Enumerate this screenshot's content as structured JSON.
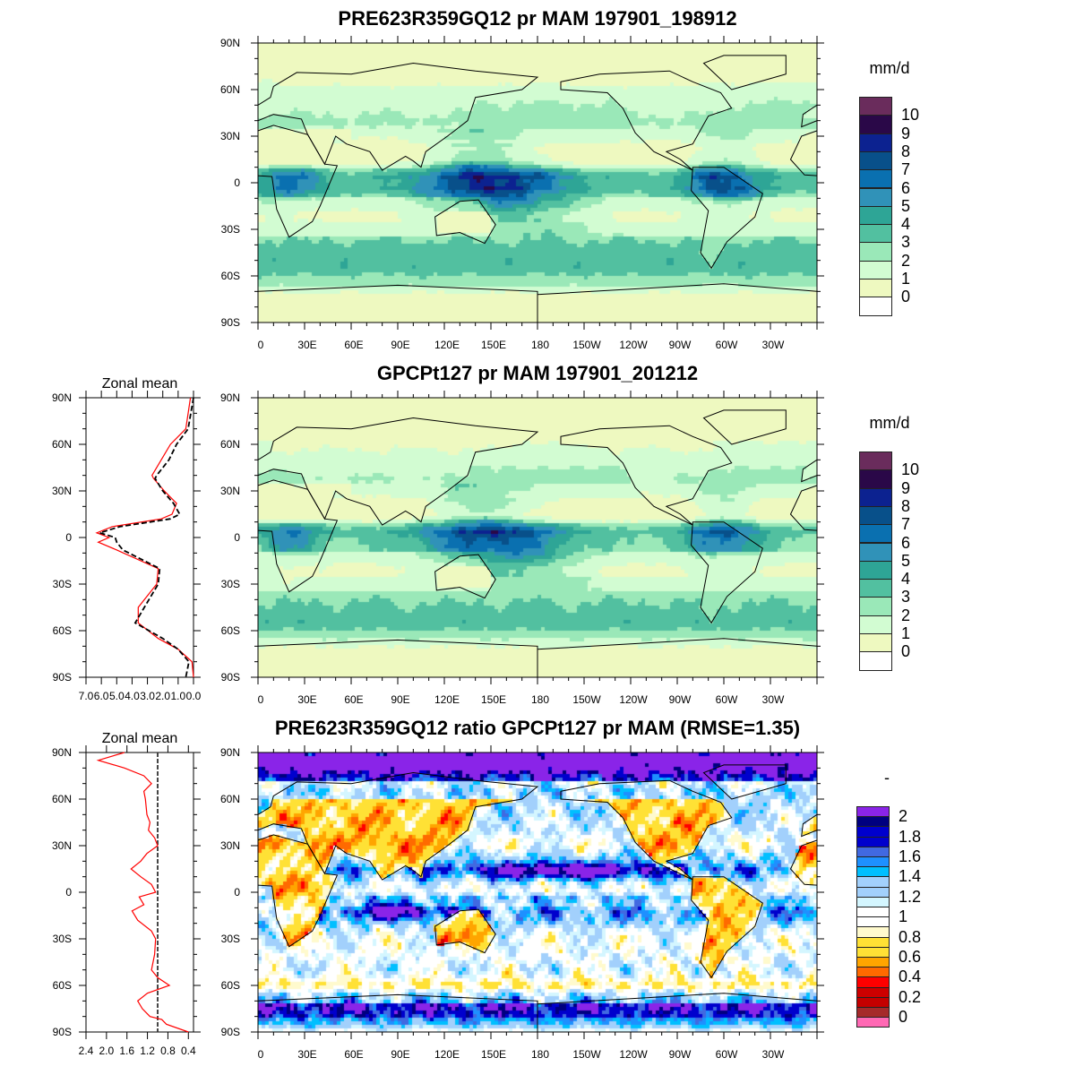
{
  "panels": [
    {
      "title": "PRE623R359GQ12 pr MAM 197901_198912",
      "colorbar": {
        "unit": "mm/d",
        "labels": [
          "10",
          "9",
          "8",
          "7",
          "6",
          "5",
          "4",
          "3",
          "2",
          "1",
          "0"
        ],
        "colors": [
          "#6a2c5c",
          "#2a0848",
          "#0c2290",
          "#08508a",
          "#0a70b0",
          "#3092b8",
          "#2ea596",
          "#52c0a0",
          "#9ae8b8",
          "#d2fcd2",
          "#eef9c0",
          "#ffffff"
        ]
      }
    },
    {
      "title": "GPCPt127 pr MAM 197901_201212",
      "colorbar": {
        "unit": "mm/d",
        "labels": [
          "10",
          "9",
          "8",
          "7",
          "6",
          "5",
          "4",
          "3",
          "2",
          "1",
          "0"
        ],
        "colors": [
          "#6a2c5c",
          "#2a0848",
          "#0c2290",
          "#08508a",
          "#0a70b0",
          "#3092b8",
          "#2ea596",
          "#52c0a0",
          "#9ae8b8",
          "#d2fcd2",
          "#eef9c0",
          "#ffffff"
        ]
      }
    },
    {
      "title": "PRE623R359GQ12 ratio GPCPt127 pr MAM (RMSE=1.35)",
      "colorbar": {
        "unit": "-",
        "labels": [
          "2",
          "1.8",
          "1.6",
          "1.4",
          "1.2",
          "1",
          "0.8",
          "0.6",
          "0.4",
          "0.2",
          "0"
        ],
        "colors": [
          "#8a24e8",
          "#000080",
          "#0000cd",
          "#0000cd",
          "#4169e1",
          "#1e90ff",
          "#00bfff",
          "#a2d0fc",
          "#a2d0fc",
          "#d4f6ff",
          "#ffffff",
          "#ffffff",
          "#fffacd",
          "#ffe135",
          "#ffe135",
          "#ffa500",
          "#ff6a00",
          "#ff0000",
          "#cd0000",
          "#c40000",
          "#a52a2a",
          "#ff69b4"
        ]
      }
    }
  ],
  "lat_labels": [
    "90N",
    "60N",
    "30N",
    "0",
    "30S",
    "60S",
    "90S"
  ],
  "lon_labels": [
    "0",
    "30E",
    "60E",
    "90E",
    "120E",
    "150E",
    "180",
    "150W",
    "120W",
    "90W",
    "60W",
    "30W"
  ],
  "chart_data": [
    {
      "type": "line",
      "title": "Zonal mean",
      "xlim": [
        7.0,
        0.0
      ],
      "x_ticklabels": [
        "7.0",
        "6.0",
        "5.0",
        "4.0",
        "3.0",
        "2.0",
        "1.0",
        "0.0"
      ],
      "y_ticklabels": [
        "90N",
        "60N",
        "30N",
        "0",
        "30S",
        "60S",
        "90S"
      ],
      "ylim": [
        -90,
        90
      ],
      "lat": [
        90,
        70,
        60,
        50,
        40,
        38,
        30,
        22,
        15,
        12,
        7,
        3,
        0,
        -3,
        -8,
        -20,
        -30,
        -45,
        -55,
        -65,
        -72,
        -80,
        -90
      ],
      "series": [
        {
          "color": "#ff0000",
          "style": "solid",
          "values": [
            0.2,
            0.5,
            1.5,
            2.1,
            2.7,
            2.6,
            1.9,
            1.1,
            1.4,
            2.1,
            5.3,
            6.3,
            5.5,
            6.2,
            5.0,
            2.3,
            2.4,
            3.6,
            3.6,
            2.3,
            1.0,
            0.1,
            0.0
          ]
        },
        {
          "color": "#000000",
          "style": "dashed",
          "values": [
            0.0,
            0.35,
            1.1,
            1.6,
            2.4,
            2.5,
            2.0,
            1.3,
            0.9,
            1.5,
            4.8,
            6.1,
            5.1,
            5.0,
            4.6,
            2.2,
            2.3,
            3.2,
            3.8,
            2.0,
            1.0,
            0.3,
            0.5
          ]
        }
      ]
    },
    {
      "type": "line",
      "title": "Zonal mean",
      "xlim": [
        2.4,
        0.3
      ],
      "x_ticklabels": [
        "2.4",
        "2.0",
        "1.6",
        "1.2",
        "0.8",
        "0.4"
      ],
      "y_ticklabels": [
        "90N",
        "60N",
        "30N",
        "0",
        "30S",
        "60S",
        "90S"
      ],
      "ylim": [
        -90,
        90
      ],
      "reference_line": 1.0,
      "lat": [
        90,
        85,
        80,
        75,
        70,
        65,
        60,
        50,
        45,
        40,
        35,
        30,
        25,
        20,
        15,
        10,
        5,
        0,
        -3,
        -8,
        -12,
        -18,
        -25,
        -30,
        -40,
        -50,
        -55,
        -60,
        -65,
        -70,
        -75,
        -80,
        -82,
        -85,
        -90
      ],
      "series": [
        {
          "color": "#ff0000",
          "style": "solid",
          "values": [
            1.65,
            2.16,
            1.65,
            1.27,
            1.12,
            1.27,
            1.24,
            1.21,
            1.15,
            1.18,
            1.06,
            1.0,
            1.21,
            1.33,
            1.52,
            1.33,
            1.12,
            1.04,
            1.36,
            1.27,
            1.5,
            1.39,
            1.12,
            1.04,
            1.06,
            1.12,
            1.0,
            0.77,
            1.2,
            1.39,
            1.3,
            1.15,
            0.92,
            0.83,
            0.4
          ]
        }
      ]
    }
  ]
}
